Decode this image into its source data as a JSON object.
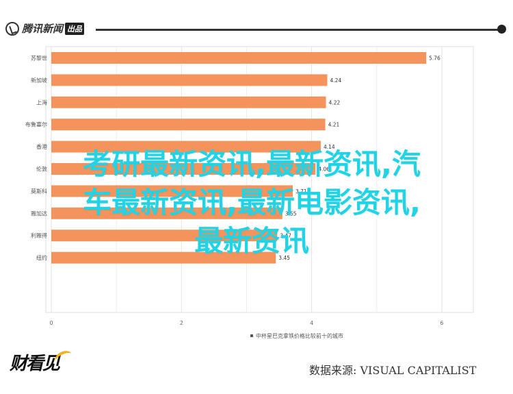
{
  "header": {
    "logo_text": "腾讯新闻",
    "logo_badge": "出品"
  },
  "chart_data": {
    "type": "bar",
    "orientation": "horizontal",
    "categories": [
      "苏黎世",
      "新加坡",
      "上海",
      "布鲁塞尔",
      "香港",
      "伦敦",
      "莫斯科",
      "雅加达",
      "利雅得",
      "纽约"
    ],
    "values": [
      5.76,
      4.24,
      4.22,
      4.21,
      4.14,
      4.06,
      3.71,
      3.55,
      3.47,
      3.45
    ],
    "value_labels": [
      "5.76",
      "4.24",
      "4.22",
      "4.21",
      "4.14",
      "4.06",
      "3.71",
      "3.55",
      "3.47",
      "3.45"
    ],
    "x_ticks": [
      0,
      2,
      4,
      6
    ],
    "xlim": [
      0,
      6.4
    ],
    "grid": true,
    "bar_color": "#f4945c",
    "legend": "中杯星巴克拿铁价格比较前十的城市",
    "legend_placement": "bottom"
  },
  "overlay": {
    "lines": [
      "考研最新资讯,最新资讯,汽",
      "车最新资讯,最新电影资讯,",
      "最新资讯"
    ],
    "color": "#22d3e6"
  },
  "footer": {
    "logo_text": "财看见",
    "data_source": "数据来源: VISUAL CAPITALIST"
  }
}
